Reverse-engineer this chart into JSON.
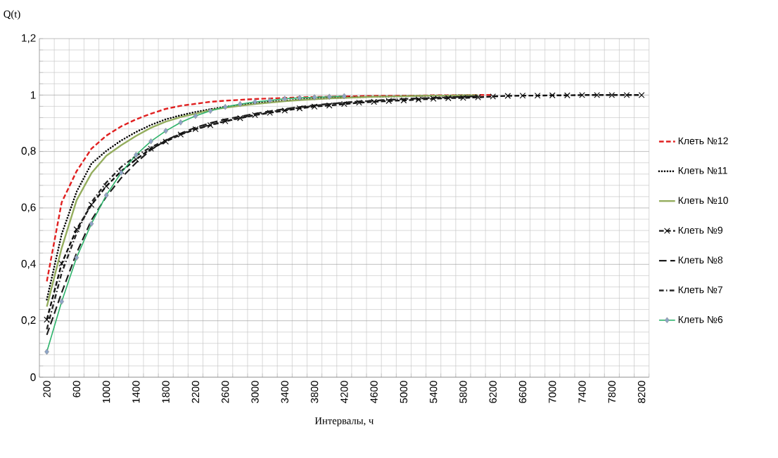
{
  "chart_data": {
    "type": "line",
    "xlabel": "Интервалы, ч",
    "ylabel": "Q(t)",
    "categories": [
      "200",
      null,
      "600",
      null,
      "1000",
      null,
      "1400",
      null,
      "1800",
      null,
      "2200",
      null,
      "2600",
      null,
      "3000",
      null,
      "3400",
      null,
      "3800",
      null,
      "4200",
      null,
      "4600",
      null,
      "5000",
      null,
      "5400",
      null,
      "5800",
      null,
      "6200",
      null,
      "6600",
      null,
      "7000",
      null,
      "7400",
      null,
      "7800",
      null,
      "8200"
    ],
    "ylim": [
      0,
      1.2
    ],
    "yticks": [
      0,
      {
        "value": 0.2,
        "label": "0,2"
      },
      {
        "value": 0.4,
        "label": "0,4"
      },
      {
        "value": 0.6,
        "label": "0,6"
      },
      {
        "value": 0.8,
        "label": "0,8"
      },
      1,
      {
        "value": 1.2,
        "label": "1,2"
      }
    ],
    "grid": true,
    "legend": "right",
    "series": [
      {
        "name": "Клеть №12",
        "color": "#e02020",
        "line_style": "dashed",
        "marker": "none",
        "values": [
          0.34,
          0.62,
          0.73,
          0.81,
          0.856,
          0.889,
          0.914,
          0.934,
          0.951,
          0.962,
          0.969,
          0.976,
          0.98,
          0.983,
          0.986,
          0.988,
          0.99,
          0.992,
          0.993,
          0.994,
          0.995,
          0.996,
          0.997,
          0.997,
          0.998,
          0.998,
          0.999,
          0.999,
          0.999,
          1.0,
          1.0,
          null,
          null,
          null,
          null,
          null,
          null,
          null,
          null,
          null,
          null
        ]
      },
      {
        "name": "Клеть №11",
        "color": "#000000",
        "line_style": "dotted",
        "marker": "none",
        "values": [
          0.275,
          0.507,
          0.657,
          0.757,
          0.802,
          0.839,
          0.869,
          0.894,
          0.914,
          0.928,
          0.94,
          0.95,
          0.958,
          0.965,
          0.971,
          0.976,
          0.98,
          0.984,
          0.987,
          0.989,
          0.991,
          0.993,
          0.994,
          0.995,
          0.996,
          0.997,
          0.998,
          0.998,
          0.999,
          0.999,
          null,
          null,
          null,
          null,
          null,
          null,
          null,
          null,
          null,
          null,
          null
        ]
      },
      {
        "name": "Клеть №10",
        "color": "#94ad5e",
        "line_style": "solid",
        "marker": "none",
        "values": [
          0.25,
          0.458,
          0.627,
          0.723,
          0.785,
          0.822,
          0.855,
          0.884,
          0.906,
          0.922,
          0.934,
          0.947,
          0.955,
          0.962,
          0.968,
          0.973,
          0.978,
          0.982,
          0.985,
          0.988,
          0.99,
          0.992,
          0.994,
          0.995,
          0.996,
          0.997,
          0.998,
          0.998,
          0.999,
          0.999,
          null,
          null,
          null,
          null,
          null,
          null,
          null,
          null,
          null,
          null,
          null
        ]
      },
      {
        "name": "Клеть №9",
        "color": "#101010",
        "line_style": "dashed",
        "marker": "cross",
        "values": [
          0.204,
          0.403,
          0.524,
          0.611,
          0.677,
          0.73,
          0.772,
          0.81,
          0.835,
          0.86,
          0.879,
          0.893,
          0.907,
          0.918,
          0.929,
          0.937,
          0.945,
          0.953,
          0.959,
          0.963,
          0.968,
          0.973,
          0.976,
          0.979,
          0.981,
          0.984,
          0.987,
          0.989,
          0.99,
          0.992,
          0.995,
          0.997,
          0.998,
          0.998,
          0.999,
          0.999,
          1.0,
          1.0,
          1.0,
          1.0,
          1.0
        ]
      },
      {
        "name": "Клеть №8",
        "color": "#1c1c1c",
        "line_style": "longdash",
        "marker": "none",
        "values": [
          0.15,
          0.3,
          0.44,
          0.557,
          0.64,
          0.706,
          0.76,
          0.806,
          0.839,
          0.864,
          0.885,
          0.901,
          0.914,
          0.924,
          0.934,
          0.943,
          0.951,
          0.958,
          0.964,
          0.969,
          0.973,
          0.977,
          0.98,
          0.983,
          0.986,
          0.988,
          0.99,
          0.992,
          0.994,
          0.996,
          null,
          null,
          null,
          null,
          null,
          null,
          null,
          null,
          null,
          null,
          null
        ]
      },
      {
        "name": "Клеть №7",
        "color": "#262626",
        "line_style": "dashdot",
        "marker": "none",
        "values": [
          0.17,
          0.37,
          0.51,
          0.62,
          0.69,
          0.745,
          0.785,
          0.815,
          0.84,
          0.862,
          0.88,
          0.895,
          0.908,
          0.92,
          0.93,
          0.94,
          0.948,
          0.955,
          0.962,
          0.968,
          0.973,
          0.977,
          0.98,
          0.983,
          0.986,
          0.988,
          0.99,
          0.992,
          0.994,
          0.996,
          null,
          null,
          null,
          null,
          null,
          null,
          null,
          null,
          null,
          null,
          null
        ]
      },
      {
        "name": "Клеть №6",
        "color": "#2db36b",
        "line_style": "solid",
        "marker": "diamond",
        "values": [
          0.09,
          0.268,
          0.424,
          0.544,
          0.645,
          0.725,
          0.788,
          0.836,
          0.873,
          0.903,
          0.926,
          0.944,
          0.958,
          0.968,
          0.976,
          0.981,
          0.987,
          0.99,
          0.992,
          0.994,
          0.996,
          null,
          null,
          null,
          null,
          null,
          null,
          null,
          null,
          null,
          null,
          null,
          null,
          null,
          null,
          null,
          null,
          null,
          null,
          null,
          null
        ]
      }
    ]
  }
}
